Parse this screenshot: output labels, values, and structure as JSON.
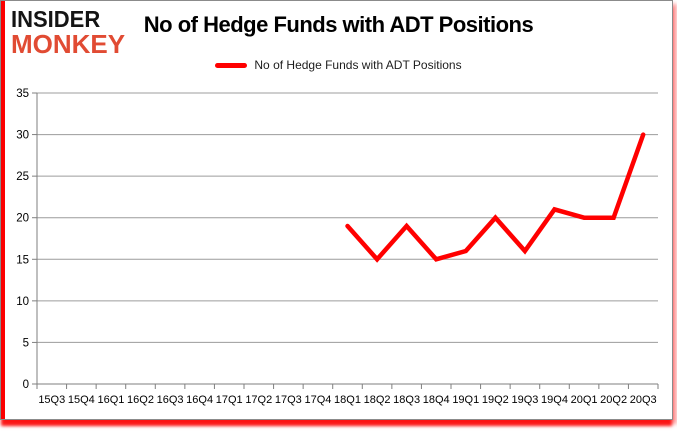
{
  "brand": {
    "logo_line1": "INSIDER",
    "logo_line2": "MONKEY",
    "logo_color_top": "#141414",
    "logo_color_bottom": "#e14b33"
  },
  "header": {
    "title": "No of Hedge Funds with ADT Positions"
  },
  "legend": {
    "label": "No of Hedge Funds with ADT Positions",
    "swatch_color": "#ff0000"
  },
  "chart_data": {
    "type": "line",
    "title": "No of Hedge Funds with ADT Positions",
    "categories": [
      "15Q3",
      "15Q4",
      "16Q1",
      "16Q2",
      "16Q3",
      "16Q4",
      "17Q1",
      "17Q2",
      "17Q3",
      "17Q4",
      "18Q1",
      "18Q2",
      "18Q3",
      "18Q4",
      "19Q1",
      "19Q2",
      "19Q3",
      "19Q4",
      "20Q1",
      "20Q2",
      "20Q3"
    ],
    "series": [
      {
        "name": "No of Hedge Funds with ADT Positions",
        "color": "#ff0000",
        "values": [
          null,
          null,
          null,
          null,
          null,
          null,
          null,
          null,
          null,
          null,
          19,
          15,
          19,
          15,
          16,
          20,
          16,
          21,
          20,
          20,
          30
        ]
      }
    ],
    "xlabel": "",
    "ylabel": "",
    "ylim": [
      0,
      35
    ],
    "ytick_step": 5,
    "grid": true,
    "legend_position": "top",
    "axis_color": "#7f7f7f",
    "grid_color": "#9c9c9c",
    "label_color": "#000000",
    "frame_accent_color": "#fb0000"
  }
}
